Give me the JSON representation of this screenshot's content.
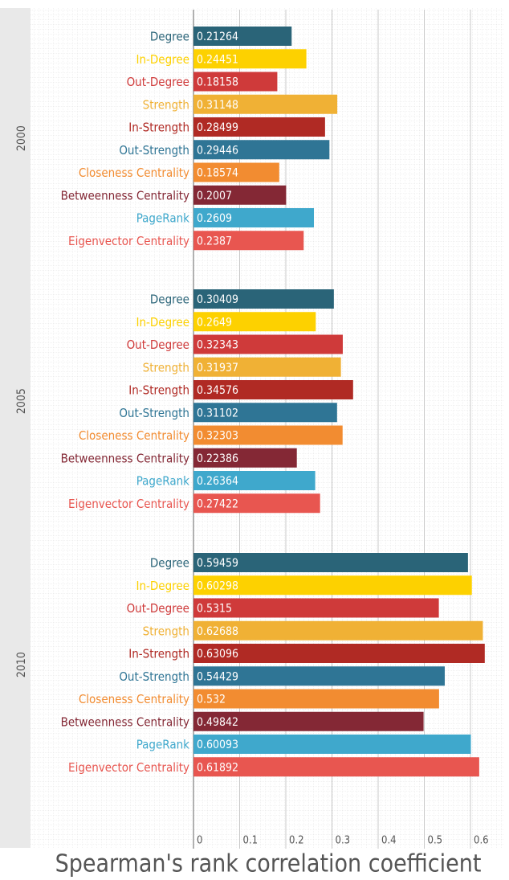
{
  "chart_data": {
    "type": "bar",
    "x_label": "Spearman's rank correlation coefficient",
    "categories": [
      "Degree",
      "In-Degree",
      "Out-Degree",
      "Strength",
      "In-Strength",
      "Out-Strength",
      "Closeness Centrality",
      "Betweenness Centrality",
      "PageRank",
      "Eigenvector Centrality"
    ],
    "colors": [
      "#2a6478",
      "#fdd100",
      "#cf3a3a",
      "#f0b135",
      "#b02a24",
      "#2f7595",
      "#f28c31",
      "#842835",
      "#3fa8cc",
      "#e85650"
    ],
    "series": [
      {
        "name": "2000",
        "values": [
          0.21264,
          0.24451,
          0.18158,
          0.31148,
          0.28499,
          0.29446,
          0.18574,
          0.2007,
          0.2609,
          0.2387
        ]
      },
      {
        "name": "2005",
        "values": [
          0.30409,
          0.2649,
          0.32343,
          0.31937,
          0.34576,
          0.31102,
          0.32303,
          0.22386,
          0.26364,
          0.27422
        ]
      },
      {
        "name": "2010",
        "values": [
          0.59459,
          0.60298,
          0.5315,
          0.62688,
          0.63096,
          0.54429,
          0.532,
          0.49842,
          0.60093,
          0.61892
        ]
      }
    ],
    "xlim": [
      0,
      0.66
    ],
    "xticks": [
      0,
      0.1,
      0.2,
      0.3,
      0.4,
      0.5,
      0.6
    ],
    "grid": true
  }
}
